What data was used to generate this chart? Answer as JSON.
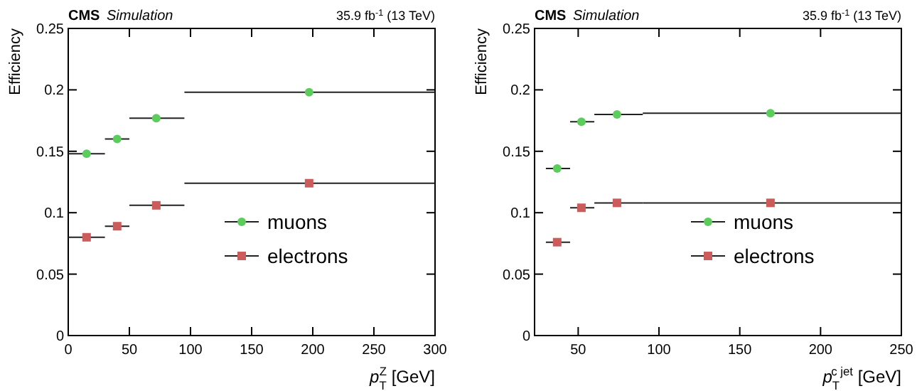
{
  "chart_data": [
    {
      "type": "scatter",
      "title": "CMS",
      "subtitle": "Simulation",
      "annotations": [
        "35.9 fb$^{-1}$ (13 TeV)"
      ],
      "xlabel": "p$_{T}$$^{Z}$ [GeV]",
      "ylabel": "Efficiency",
      "x": [
        15,
        40,
        72,
        197
      ],
      "xlim": [
        0,
        300
      ],
      "xticks": [
        0,
        50,
        100,
        150,
        200,
        250,
        300
      ],
      "ylim": [
        0,
        0.25
      ],
      "yticks": [
        0,
        0.05,
        0.1,
        0.15,
        0.2,
        0.25
      ],
      "legend": "bottom right",
      "grid": false,
      "series": [
        {
          "name": "muons",
          "color": "#5ccc5c",
          "marker": "circle",
          "values": [
            0.148,
            0.16,
            0.177,
            0.198
          ],
          "xerrors": [
            [
              0,
              30
            ],
            [
              30,
              50
            ],
            [
              50,
              95
            ],
            [
              95,
              300
            ]
          ]
        },
        {
          "name": "electrons",
          "color": "#cc5c5c",
          "marker": "square",
          "values": [
            0.08,
            0.089,
            0.106,
            0.124
          ],
          "xerrors": [
            [
              0,
              30
            ],
            [
              30,
              50
            ],
            [
              50,
              95
            ],
            [
              95,
              300
            ]
          ]
        }
      ]
    },
    {
      "type": "scatter",
      "title": "CMS",
      "subtitle": "Simulation",
      "annotations": [
        "35.9 fb$^{-1}$ (13 TeV)"
      ],
      "xlabel": "p$_{T}$$^{c jet}$ [GeV]",
      "ylabel": "Efficiency",
      "x": [
        37,
        52,
        74,
        169
      ],
      "xlim": [
        23,
        250
      ],
      "xticks": [
        50,
        100,
        150,
        200,
        250
      ],
      "ylim": [
        0,
        0.25
      ],
      "yticks": [
        0,
        0.05,
        0.1,
        0.15,
        0.2,
        0.25
      ],
      "legend": "bottom right",
      "grid": false,
      "series": [
        {
          "name": "muons",
          "color": "#5ccc5c",
          "marker": "circle",
          "values": [
            0.136,
            0.174,
            0.18,
            0.181
          ],
          "xerrors": [
            [
              30,
              45
            ],
            [
              45,
              60
            ],
            [
              60,
              90
            ],
            [
              90,
              250
            ]
          ]
        },
        {
          "name": "electrons",
          "color": "#cc5c5c",
          "marker": "square",
          "values": [
            0.076,
            0.104,
            0.108,
            0.108
          ],
          "xerrors": [
            [
              30,
              45
            ],
            [
              45,
              60
            ],
            [
              60,
              90
            ],
            [
              90,
              250
            ]
          ]
        }
      ]
    }
  ]
}
